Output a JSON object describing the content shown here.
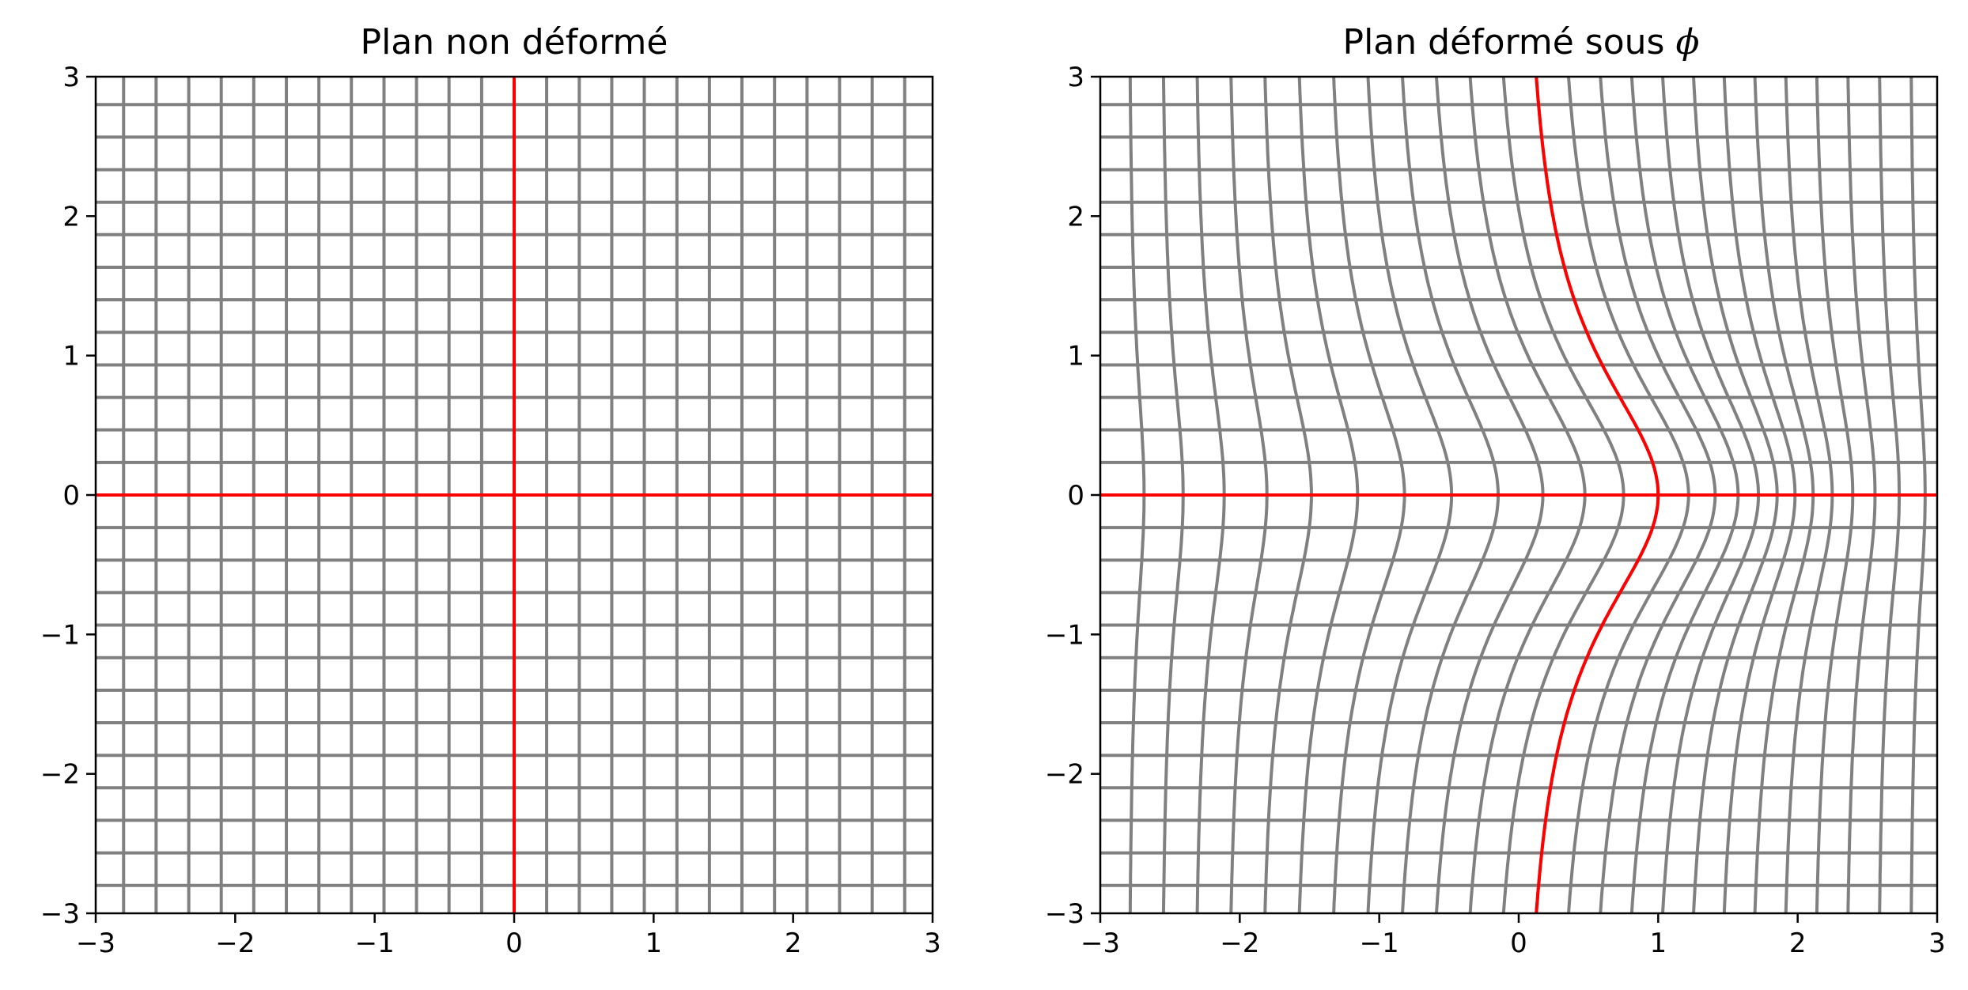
{
  "chart_data": [
    {
      "type": "line",
      "title": "Plan non déformé",
      "xlabel": "",
      "ylabel": "",
      "xlim": [
        -3,
        3
      ],
      "ylim": [
        -3,
        3
      ],
      "xticks": [
        "−3",
        "−2",
        "−1",
        "0",
        "1",
        "2",
        "3"
      ],
      "yticks": [
        "−3",
        "−2",
        "−1",
        "0",
        "1",
        "2",
        "3"
      ],
      "grid_line_values": [
        -2.8,
        -2.567,
        -2.333,
        -2.1,
        -1.867,
        -1.633,
        -1.4,
        -1.167,
        -0.933,
        -0.7,
        -0.467,
        -0.233,
        0.0,
        0.233,
        0.467,
        0.7,
        0.933,
        1.167,
        1.4,
        1.633,
        1.867,
        2.1,
        2.333,
        2.567,
        2.8
      ],
      "grid_color": "#808080",
      "axes_color": "#ff0000",
      "series": [
        {
          "values": [
            [
              0,
              -3
            ],
            [
              0,
              3
            ]
          ]
        },
        {
          "values": [
            [
              -3,
              0
            ],
            [
              3,
              0
            ]
          ]
        }
      ]
    },
    {
      "type": "line",
      "title": "Plan déformé sous ϕ",
      "title_text": "Plan déformé sous ",
      "title_symbol": "ϕ",
      "xlabel": "",
      "ylabel": "",
      "xlim": [
        -3,
        3
      ],
      "ylim": [
        -3,
        3
      ],
      "xticks": [
        "−3",
        "−2",
        "−1",
        "0",
        "1",
        "2",
        "3"
      ],
      "yticks": [
        "−3",
        "−2",
        "−1",
        "0",
        "1",
        "2",
        "3"
      ],
      "grid_line_values": [
        -2.8,
        -2.567,
        -2.333,
        -2.1,
        -1.867,
        -1.633,
        -1.4,
        -1.167,
        -0.933,
        -0.7,
        -0.467,
        -0.233,
        0.0,
        0.233,
        0.467,
        0.7,
        0.933,
        1.167,
        1.4,
        1.633,
        1.867,
        2.1,
        2.333,
        2.567,
        2.8
      ],
      "grid_color": "#808080",
      "axes_color": "#ff0000",
      "series": [
        {
          "values": [
            [
              0.0,
              -3.0
            ],
            [
              0.05,
              -2.0
            ],
            [
              0.25,
              -1.5
            ],
            [
              0.55,
              -1.0
            ],
            [
              0.83,
              -0.5
            ],
            [
              1.0,
              0.0
            ],
            [
              0.83,
              0.5
            ],
            [
              0.55,
              1.0
            ],
            [
              0.25,
              1.5
            ],
            [
              0.05,
              2.0
            ],
            [
              0.0,
              3.0
            ]
          ]
        },
        {
          "values": [
            [
              -3,
              0
            ],
            [
              3,
              0
            ]
          ]
        }
      ]
    }
  ]
}
